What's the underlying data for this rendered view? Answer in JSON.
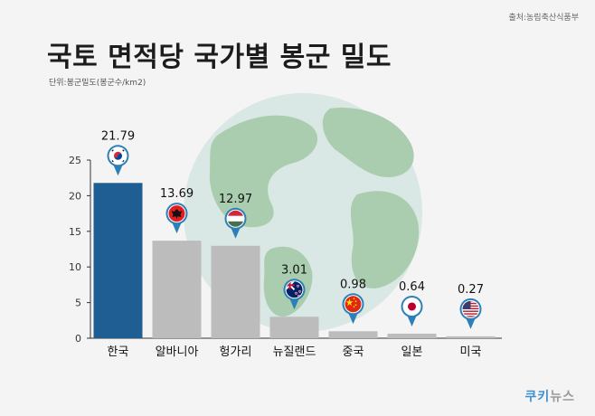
{
  "header": {
    "source": "출처:농림축산식품부",
    "title": "국토 면적당 국가별 봉군 밀도",
    "unit": "단위:봉군밀도(봉군수/km2)"
  },
  "logo": {
    "part1": "쿠키",
    "part2": "뉴스"
  },
  "colors": {
    "highlight": "#1f5e93",
    "bar": "#bcbcbc",
    "globe_land": "#aacdb0",
    "globe_sea": "#d9e8e4"
  },
  "chart_data": {
    "type": "bar",
    "title": "국토 면적당 국가별 봉군 밀도",
    "xlabel": "",
    "ylabel": "단위:봉군밀도(봉군수/km2)",
    "categories": [
      "한국",
      "알바니아",
      "헝가리",
      "뉴질랜드",
      "중국",
      "일본",
      "미국"
    ],
    "values": [
      21.79,
      13.69,
      12.97,
      3.01,
      0.98,
      0.64,
      0.27
    ],
    "value_labels": [
      "21.79",
      "13.69",
      "12.97",
      "3.01",
      "0.98",
      "0.64",
      "0.27"
    ],
    "flag_icons": [
      "korea-flag-icon",
      "albania-flag-icon",
      "hungary-flag-icon",
      "new-zealand-flag-icon",
      "china-flag-icon",
      "japan-flag-icon",
      "usa-flag-icon"
    ],
    "highlight_index": 0,
    "ylim": [
      0,
      25
    ],
    "yticks": [
      0,
      5,
      10,
      15,
      20,
      25
    ],
    "grid": false,
    "legend": "none"
  }
}
